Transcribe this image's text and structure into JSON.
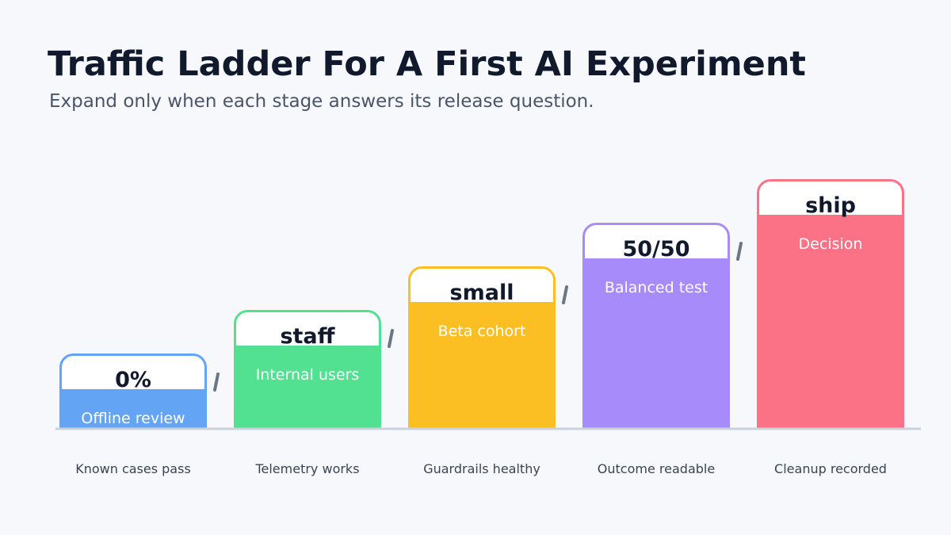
{
  "title": "Traffic Ladder For A First AI Experiment",
  "subtitle": "Expand only when each stage answers its release question.",
  "colors": {
    "background": "#f7f8fb",
    "title": "#111a2c",
    "subtitle": "#4a5568",
    "connector": "#6b7585",
    "baseline": "#cbd2dc"
  },
  "stages": [
    {
      "level": "0%",
      "description": "Offline review",
      "gate": "Known cases pass",
      "step": 1,
      "color": "#63a4f5"
    },
    {
      "level": "staff",
      "description": "Internal users",
      "gate": "Telemetry works",
      "step": 2,
      "color": "#52e091"
    },
    {
      "level": "small",
      "description": "Beta cohort",
      "gate": "Guardrails healthy",
      "step": 3,
      "color": "#fbbf24"
    },
    {
      "level": "50/50",
      "description": "Balanced test",
      "gate": "Outcome readable",
      "step": 4,
      "color": "#a78bfa"
    },
    {
      "level": "ship",
      "description": "Decision",
      "gate": "Cleanup recorded",
      "step": 5,
      "color": "#fb7185"
    }
  ]
}
